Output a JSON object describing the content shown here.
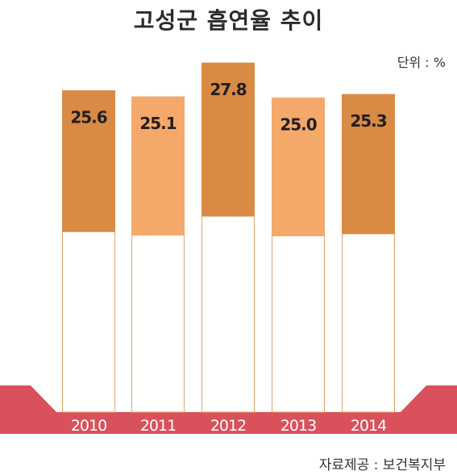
{
  "title": "고성군 흡연율 추이",
  "unit": "단위 : %",
  "source": "자료제공 : 보건복지부",
  "colors": {
    "dark": "#d98a45",
    "light": "#f4a96b",
    "base": "#d9515a",
    "outline": "#e8a36a"
  },
  "chart_data": {
    "type": "bar",
    "title": "고성군 흡연율 추이",
    "unit": "%",
    "categories": [
      "2010",
      "2011",
      "2012",
      "2013",
      "2014"
    ],
    "values": [
      25.6,
      25.1,
      27.8,
      25.0,
      25.3
    ],
    "ylim": [
      0,
      31
    ],
    "grid": false,
    "legend": "none"
  }
}
